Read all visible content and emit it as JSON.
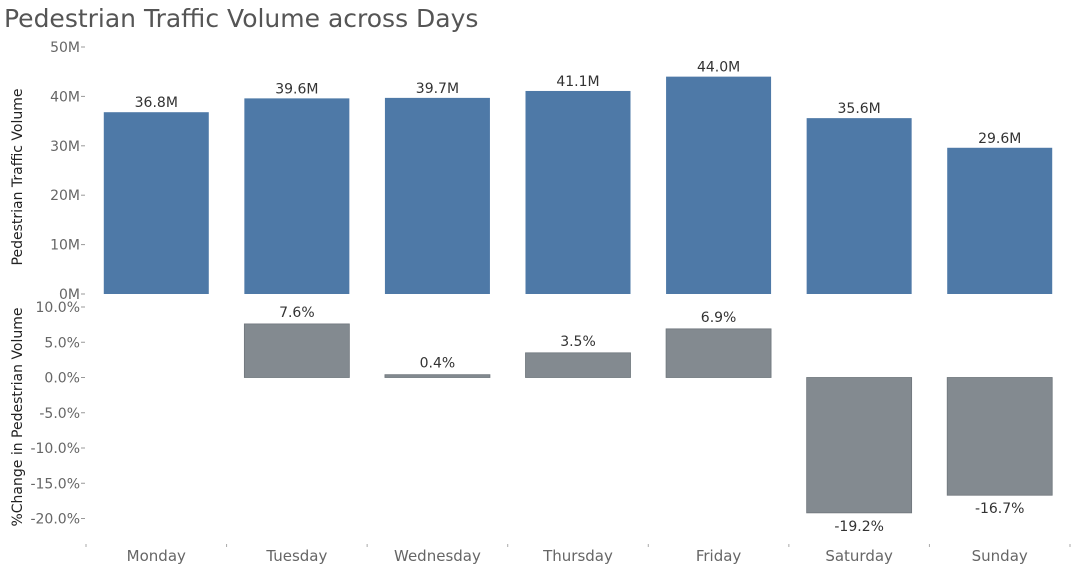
{
  "chart_data": [
    {
      "type": "bar",
      "title": "Pedestrian Traffic Volume across Days",
      "categories": [
        "Monday",
        "Tuesday",
        "Wednesday",
        "Thursday",
        "Friday",
        "Saturday",
        "Sunday"
      ],
      "values": [
        36.8,
        39.6,
        39.7,
        41.1,
        44.0,
        35.6,
        29.6
      ],
      "value_labels": [
        "36.8M",
        "39.6M",
        "39.7M",
        "41.1M",
        "44.0M",
        "35.6M",
        "29.6M"
      ],
      "unit": "M",
      "ylabel": "Pedestrian Traffic Volume",
      "ylim": [
        0,
        50
      ],
      "yticks": [
        "50M",
        "40M",
        "30M",
        "20M",
        "10M",
        "0M"
      ],
      "color": "#4e79a7",
      "grid": false
    },
    {
      "type": "bar",
      "categories": [
        "Monday",
        "Tuesday",
        "Wednesday",
        "Thursday",
        "Friday",
        "Saturday",
        "Sunday"
      ],
      "values": [
        null,
        7.6,
        0.4,
        3.5,
        6.9,
        -19.2,
        -16.7
      ],
      "value_labels": [
        "",
        "7.6%",
        "0.4%",
        "3.5%",
        "6.9%",
        "-19.2%",
        "-16.7%"
      ],
      "unit": "%",
      "ylabel": "%Change in Pedestrian Volume",
      "ylim": [
        -22,
        11
      ],
      "yticks": [
        "10.0%",
        "5.0%",
        "0.0%",
        "-5.0%",
        "-10.0%",
        "-15.0%",
        "-20.0%"
      ],
      "color": "#838a90",
      "grid": false
    }
  ]
}
